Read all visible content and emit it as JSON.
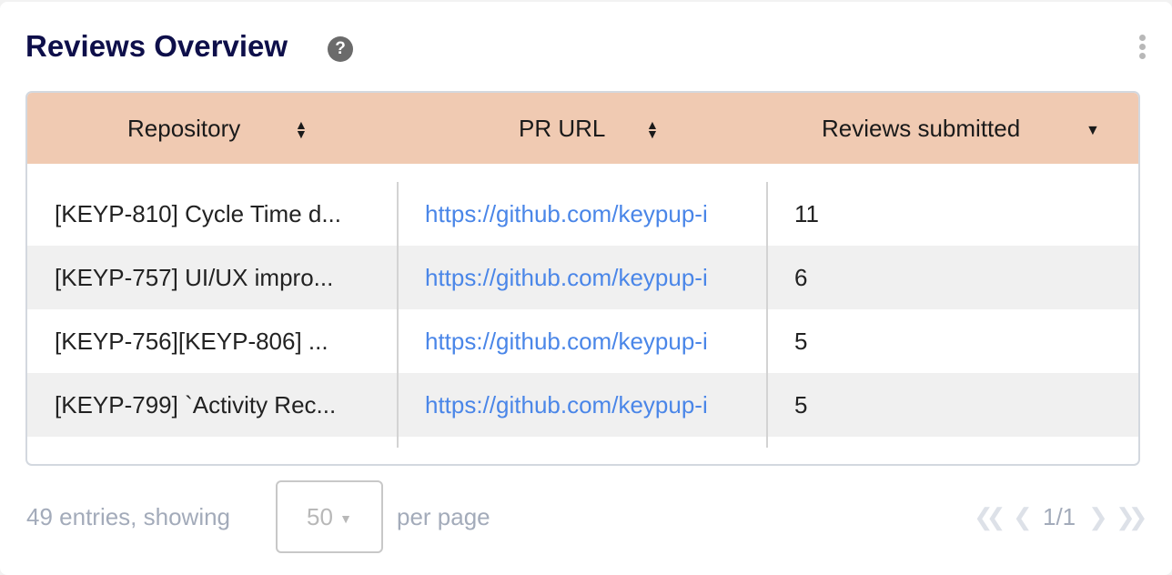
{
  "widget": {
    "title": "Reviews Overview",
    "help_icon": "question-circle-icon",
    "menu_icon": "kebab-menu-icon"
  },
  "colors": {
    "header_bg": "#f0cab2",
    "title": "#0e0f4a",
    "link": "#4a86e8"
  },
  "table": {
    "columns": [
      {
        "label": "Repository",
        "sort": "sortable"
      },
      {
        "label": "PR URL",
        "sort": "sortable"
      },
      {
        "label": "Reviews submitted",
        "sort": "descending"
      }
    ],
    "rows": [
      {
        "repository": "[KEYP-810] Cycle Time d...",
        "pr_url": "https://github.com/keypup-i",
        "reviews": "11"
      },
      {
        "repository": "[KEYP-757] UI/UX impro...",
        "pr_url": "https://github.com/keypup-i",
        "reviews": "6"
      },
      {
        "repository": "[KEYP-756][KEYP-806] ...",
        "pr_url": "https://github.com/keypup-i",
        "reviews": "5"
      },
      {
        "repository": "[KEYP-799] `Activity Rec...",
        "pr_url": "https://github.com/keypup-i",
        "reviews": "5"
      }
    ]
  },
  "pagination": {
    "entries_text": "49 entries, showing",
    "per_page_value": "50",
    "per_page_suffix": "per page",
    "page": "1/1"
  }
}
